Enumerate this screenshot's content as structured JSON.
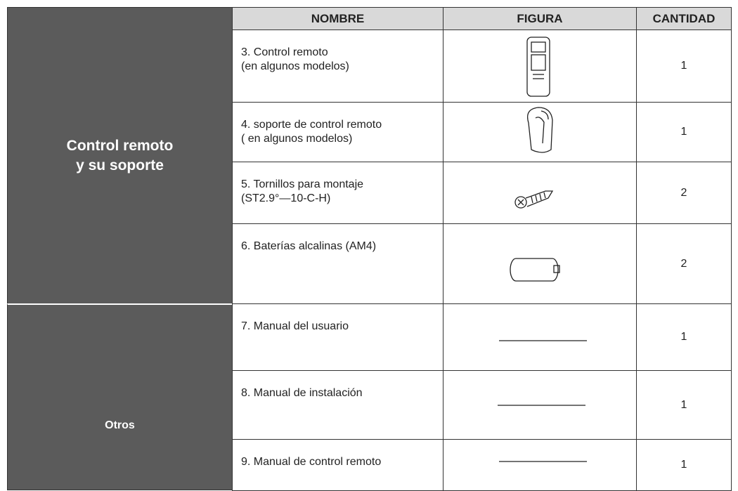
{
  "header": {
    "columns": [
      "NOMBRE",
      "FIGURA",
      "CANTIDAD"
    ]
  },
  "groups": [
    {
      "label": [
        "Control remoto",
        "y su soporte"
      ]
    },
    {
      "label": [
        "Otros"
      ]
    }
  ],
  "table": {
    "rows": [
      {
        "name": [
          "3. Control remoto",
          "(en algunos modelos)"
        ],
        "quantity": 1
      },
      {
        "name": [
          "4. soporte de control remoto",
          "( en algunos modelos)"
        ],
        "quantity": 1
      },
      {
        "name": [
          "5. Tornillos para montaje",
          "(ST2.9°—10-C-H)"
        ],
        "quantity": 2
      },
      {
        "name": [
          "6. Baterías alcalinas (AM4)"
        ],
        "quantity": 2
      },
      {
        "name": [
          "7. Manual del usuario"
        ],
        "quantity": 1
      },
      {
        "name": [
          "8. Manual de instalación"
        ],
        "quantity": 1
      },
      {
        "name": [
          "9. Manual de control remoto"
        ],
        "quantity": 1
      }
    ]
  }
}
